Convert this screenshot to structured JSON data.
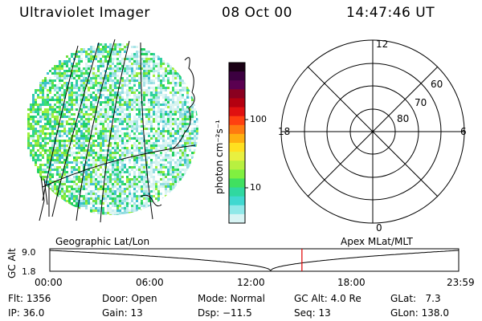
{
  "header": {
    "instrument": "Ultraviolet Imager",
    "date": "08 Oct 00",
    "time": "14:47:46 UT"
  },
  "image_panel": {
    "caption": "Geographic Lat/Lon"
  },
  "colorbar": {
    "label": "photon cm⁻²s⁻¹",
    "ticks": [
      "100",
      "10"
    ],
    "colors": [
      "#1a0015",
      "#3c0040",
      "#5a0050",
      "#8a0020",
      "#b40010",
      "#e01010",
      "#ff4010",
      "#ff7a10",
      "#ffb010",
      "#ffe020",
      "#e8f040",
      "#b8f040",
      "#80f040",
      "#40e060",
      "#30d8a0",
      "#40d8d0",
      "#90e8e8",
      "#d8f4f4"
    ]
  },
  "polar_plot": {
    "caption": "Apex MLat/MLT",
    "mlt_labels": [
      "12",
      "18",
      "6",
      "0"
    ],
    "lat_labels": [
      "60",
      "70",
      "80"
    ]
  },
  "timeline": {
    "y_axis_label": "GC Alt",
    "y_ticks": [
      "9.0",
      "1.8"
    ],
    "x_ticks": [
      "00:00",
      "06:00",
      "12:00",
      "18:00",
      "23:59"
    ],
    "current_time_fraction": 0.6166,
    "marker_color": "#e00000"
  },
  "info": {
    "row1": [
      {
        "label": "Flt:",
        "value": "1356"
      },
      {
        "label": "Door:",
        "value": "Open"
      },
      {
        "label": "Mode:",
        "value": "Normal"
      },
      {
        "label": "GC Alt:",
        "value": "4.0 Re"
      },
      {
        "label": "GLat:",
        "value": "7.3"
      }
    ],
    "row2": [
      {
        "label": "IP:",
        "value": "36.0"
      },
      {
        "label": "Gain:",
        "value": "13"
      },
      {
        "label": "Dsp:",
        "value": "−11.5"
      },
      {
        "label": "Seq:",
        "value": "13"
      },
      {
        "label": "GLon:",
        "value": "138.0"
      }
    ]
  }
}
